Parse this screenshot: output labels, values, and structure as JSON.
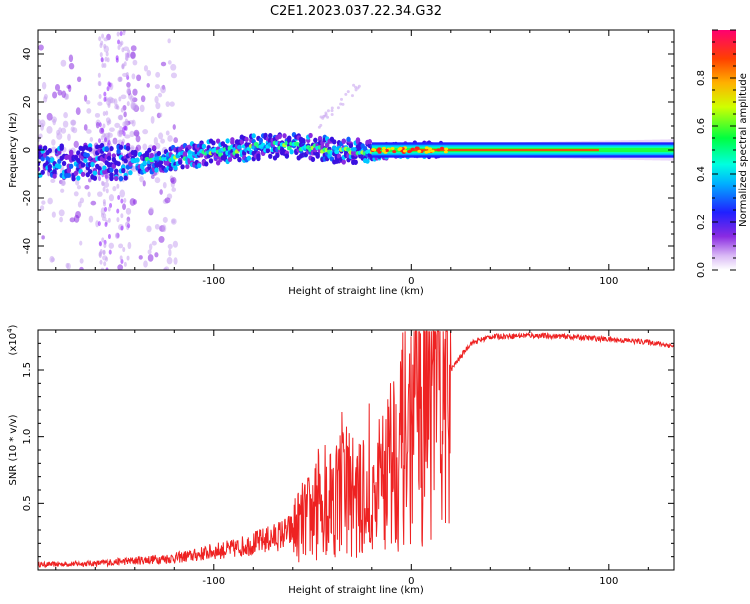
{
  "title": "C2E1.2023.037.22.34.G32",
  "chart_data": [
    {
      "type": "heatmap",
      "xlabel": "Height of straight line (km)",
      "ylabel": "Frequency (Hz)",
      "xlim": [
        -189,
        133
      ],
      "ylim": [
        -50,
        50
      ],
      "xticks": [
        -100,
        0,
        100
      ],
      "xtick_labels": [
        "-100",
        "0",
        "100"
      ],
      "yticks": [
        -40,
        -20,
        0,
        20,
        40
      ],
      "ytick_labels": [
        "-40",
        "-20",
        "0",
        "20",
        "40"
      ],
      "grid": false,
      "ridge": {
        "x": [
          -140,
          -120,
          -100,
          -80,
          -60,
          -40,
          -20,
          0,
          20,
          60,
          100,
          133
        ],
        "y": [
          -5,
          -3,
          -1,
          1,
          2,
          0,
          -1,
          0,
          0,
          0,
          0,
          0
        ]
      },
      "colorbar": {
        "label": "Normalized spectral amplitude",
        "range": [
          0,
          1
        ],
        "ticks": [
          0.0,
          0.2,
          0.4,
          0.6,
          0.8
        ],
        "tick_labels": [
          "0.0",
          "0.2",
          "0.4",
          "0.6",
          "0.8"
        ]
      }
    },
    {
      "type": "line",
      "xlabel": "Height of straight line (km)",
      "ylabel": "SNR (10 * v/v)",
      "scale_note": "(x10",
      "scale_exp": "4",
      "scale_close": ")",
      "xlim": [
        -189,
        133
      ],
      "ylim": [
        0,
        1.8
      ],
      "xticks": [
        -100,
        0,
        100
      ],
      "xtick_labels": [
        "-100",
        "0",
        "100"
      ],
      "yticks": [
        0.5,
        1.0,
        1.5
      ],
      "ytick_labels": [
        "0.5",
        "1.0",
        "1.5"
      ],
      "series": [
        {
          "color": "#ee2222",
          "x": [
            -189,
            -160,
            -140,
            -120,
            -110,
            -100,
            -90,
            -80,
            -70,
            -60,
            -55,
            -50,
            -45,
            -40,
            -35,
            -30,
            -25,
            -20,
            -15,
            -10,
            -5,
            0,
            5,
            10,
            15,
            20,
            25,
            30,
            40,
            60,
            80,
            100,
            120,
            133
          ],
          "y": [
            0.04,
            0.05,
            0.07,
            0.09,
            0.11,
            0.14,
            0.16,
            0.2,
            0.24,
            0.3,
            0.36,
            0.42,
            0.5,
            0.55,
            0.6,
            0.58,
            0.5,
            0.45,
            0.7,
            0.85,
            0.95,
            1.05,
            1.15,
            1.25,
            1.35,
            1.5,
            1.6,
            1.7,
            1.75,
            1.76,
            1.75,
            1.73,
            1.71,
            1.68
          ]
        }
      ]
    }
  ]
}
